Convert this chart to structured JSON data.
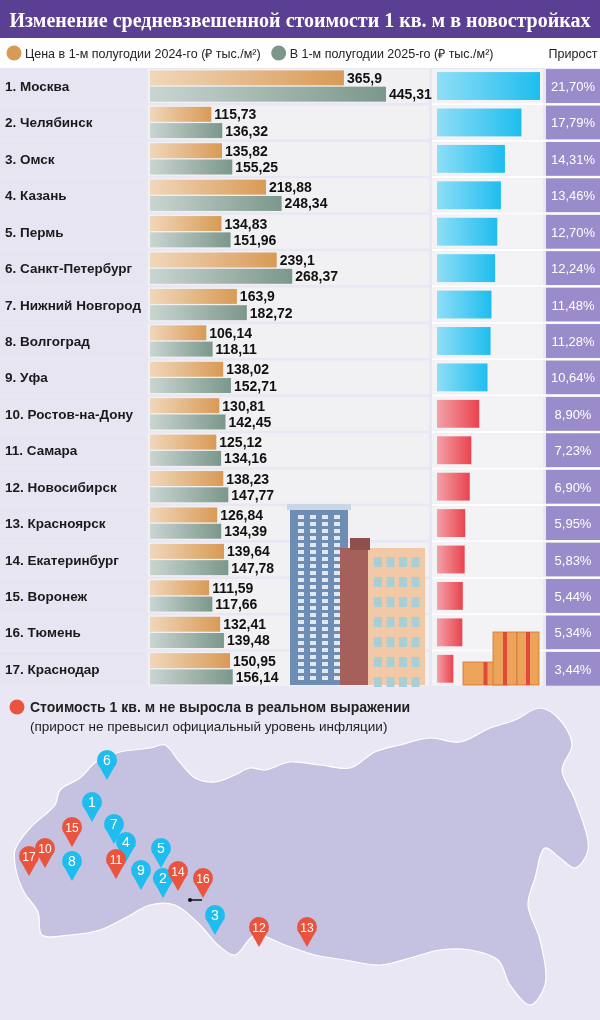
{
  "chart_data": [
    {
      "type": "bar",
      "orientation": "horizontal",
      "title": "Изменение средневзвешенной стоимости 1 кв. м в новостройках",
      "legend": "top",
      "categories": [
        "1. Москва",
        "2. Челябинск",
        "3. Омск",
        "4. Казань",
        "5. Пермь",
        "6. Санкт-Петербург",
        "7. Нижний Новгород",
        "8. Волгоград",
        "9. Уфа",
        "10. Ростов-на-Дону",
        "11. Самара",
        "12. Новосибирск",
        "13. Красноярск",
        "14. Екатеринбург",
        "15. Воронеж",
        "16. Тюмень",
        "17. Краснодар"
      ],
      "series": [
        {
          "name": "Цена в 1-м полугодии 2024-го (₽ тыс./м²)",
          "color": "#d99a55",
          "values": [
            365.9,
            115.73,
            135.82,
            218.88,
            134.83,
            239.1,
            163.9,
            106.14,
            138.02,
            130.81,
            125.12,
            138.23,
            126.84,
            139.64,
            111.59,
            132.41,
            150.95
          ],
          "value_labels": [
            "365,9",
            "115,73",
            "135,82",
            "218,88",
            "134,83",
            "239,1",
            "163,9",
            "106,14",
            "138,02",
            "130,81",
            "125,12",
            "138,23",
            "126,84",
            "139,64",
            "111,59",
            "132,41",
            "150,95"
          ]
        },
        {
          "name": "В 1-м полугодии 2025-го (₽ тыс./м²)",
          "color": "#7b978b",
          "values": [
            445.31,
            136.32,
            155.25,
            248.34,
            151.96,
            268.37,
            182.72,
            118.11,
            152.71,
            142.45,
            134.16,
            147.77,
            134.39,
            147.78,
            117.66,
            139.48,
            156.14
          ],
          "value_labels": [
            "445,31",
            "136,32",
            "155,25",
            "248,34",
            "151,96",
            "268,37",
            "182,72",
            "118,11",
            "152,71",
            "142,45",
            "134,16",
            "147,77",
            "134,39",
            "147,78",
            "117,66",
            "139,48",
            "156,14"
          ]
        }
      ]
    },
    {
      "type": "bar",
      "orientation": "horizontal",
      "grid": true,
      "annotations": [
        "Прирост"
      ],
      "categories": [
        null,
        null,
        null,
        null,
        null,
        null,
        null,
        null,
        null,
        null,
        null,
        null,
        null,
        null,
        null,
        null,
        null
      ],
      "values": [
        21.7,
        17.79,
        14.31,
        13.46,
        12.7,
        12.24,
        11.48,
        11.28,
        10.64,
        8.9,
        7.23,
        6.9,
        5.95,
        5.83,
        5.44,
        5.34,
        3.44
      ],
      "value_labels": [
        "21,70%",
        "17,79%",
        "14,31%",
        "13,46%",
        "12,70%",
        "12,24%",
        "11,48%",
        "11,28%",
        "10,64%",
        "8,90%",
        "7,23%",
        "6,90%",
        "5,95%",
        "5,83%",
        "5,44%",
        "5,34%",
        "3,44%"
      ],
      "colors": [
        "#1ebdee",
        "#1ebdee",
        "#1ebdee",
        "#1ebdee",
        "#1ebdee",
        "#1ebdee",
        "#1ebdee",
        "#1ebdee",
        "#1ebdee",
        "#e9434f",
        "#e9434f",
        "#e9434f",
        "#e9434f",
        "#e9434f",
        "#e9434f",
        "#e9434f",
        "#e9434f"
      ]
    },
    {
      "type": "other",
      "annotations": [
        "Стоимость 1 кв. м не выросла в реальном выражении",
        "(прирост не превысил официальный уровень инфляции)"
      ],
      "categories": [
        "1",
        "2",
        "3",
        "4",
        "5",
        "6",
        "7",
        "8",
        "9",
        "10",
        "11",
        "12",
        "13",
        "14",
        "15",
        "16",
        "17"
      ],
      "colors": [
        "#1ebdee",
        "#1ebdee",
        "#1ebdee",
        "#1ebdee",
        "#1ebdee",
        "#1ebdee",
        "#1ebdee",
        "#1ebdee",
        "#1ebdee",
        "#e9543f",
        "#e9543f",
        "#e9543f",
        "#e9543f",
        "#e9543f",
        "#e9543f",
        "#e9543f",
        "#e9543f"
      ]
    }
  ]
}
